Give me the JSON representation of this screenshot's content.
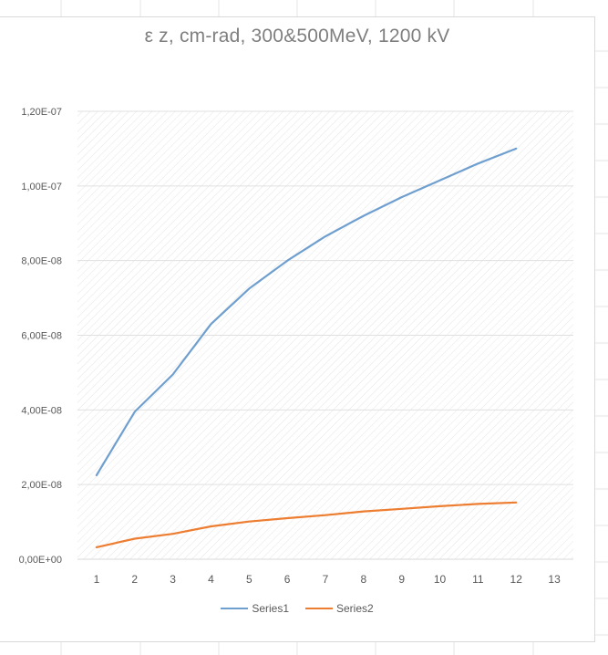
{
  "chart_data": {
    "type": "line",
    "title": "ε z, cm-rad, 300&500MeV, 1200 kV",
    "xlabel": "",
    "ylabel": "",
    "categories": [
      "1",
      "2",
      "3",
      "4",
      "5",
      "6",
      "7",
      "8",
      "9",
      "10",
      "11",
      "12",
      "13"
    ],
    "x": [
      1,
      2,
      3,
      4,
      5,
      6,
      7,
      8,
      9,
      10,
      11,
      12
    ],
    "ylim": [
      0,
      1.2e-07
    ],
    "yticks": [
      "0,00E+00",
      "2,00E-08",
      "4,00E-08",
      "6,00E-08",
      "8,00E-08",
      "1,00E-07",
      "1,20E-07"
    ],
    "grid": true,
    "legend_position": "bottom",
    "series": [
      {
        "name": "Series1",
        "color": "#6f9fcf",
        "values": [
          2.25e-08,
          3.95e-08,
          4.95e-08,
          6.3e-08,
          7.25e-08,
          8e-08,
          8.65e-08,
          9.2e-08,
          9.7e-08,
          1.015e-07,
          1.06e-07,
          1.1e-07
        ]
      },
      {
        "name": "Series2",
        "color": "#ed7d31",
        "values": [
          3.2e-09,
          5.5e-09,
          6.8e-09,
          8.8e-09,
          1.01e-08,
          1.1e-08,
          1.18e-08,
          1.28e-08,
          1.35e-08,
          1.42e-08,
          1.48e-08,
          1.52e-08
        ]
      }
    ]
  }
}
